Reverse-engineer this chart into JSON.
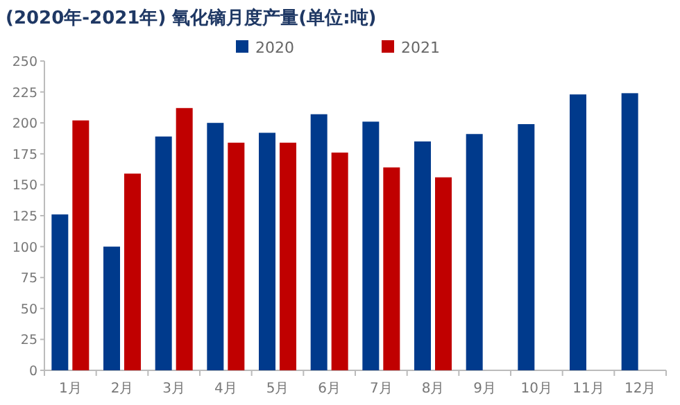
{
  "chart_data": {
    "type": "bar",
    "title": "(2020年-2021年) 氧化镝月度产量(单位:吨)",
    "categories": [
      "1月",
      "2月",
      "3月",
      "4月",
      "5月",
      "6月",
      "7月",
      "8月",
      "9月",
      "10月",
      "11月",
      "12月"
    ],
    "series": [
      {
        "name": "2020",
        "color": "#003a8c",
        "values": [
          126,
          100,
          189,
          200,
          192,
          207,
          201,
          185,
          191,
          199,
          223,
          224
        ]
      },
      {
        "name": "2021",
        "color": "#c00000",
        "values": [
          202,
          159,
          212,
          184,
          184,
          176,
          164,
          156,
          null,
          null,
          null,
          null
        ]
      }
    ],
    "ylim": [
      0,
      250
    ],
    "yticks": [
      0,
      25,
      50,
      75,
      100,
      125,
      150,
      175,
      200,
      225,
      250
    ],
    "grid": false,
    "legend": "top"
  }
}
